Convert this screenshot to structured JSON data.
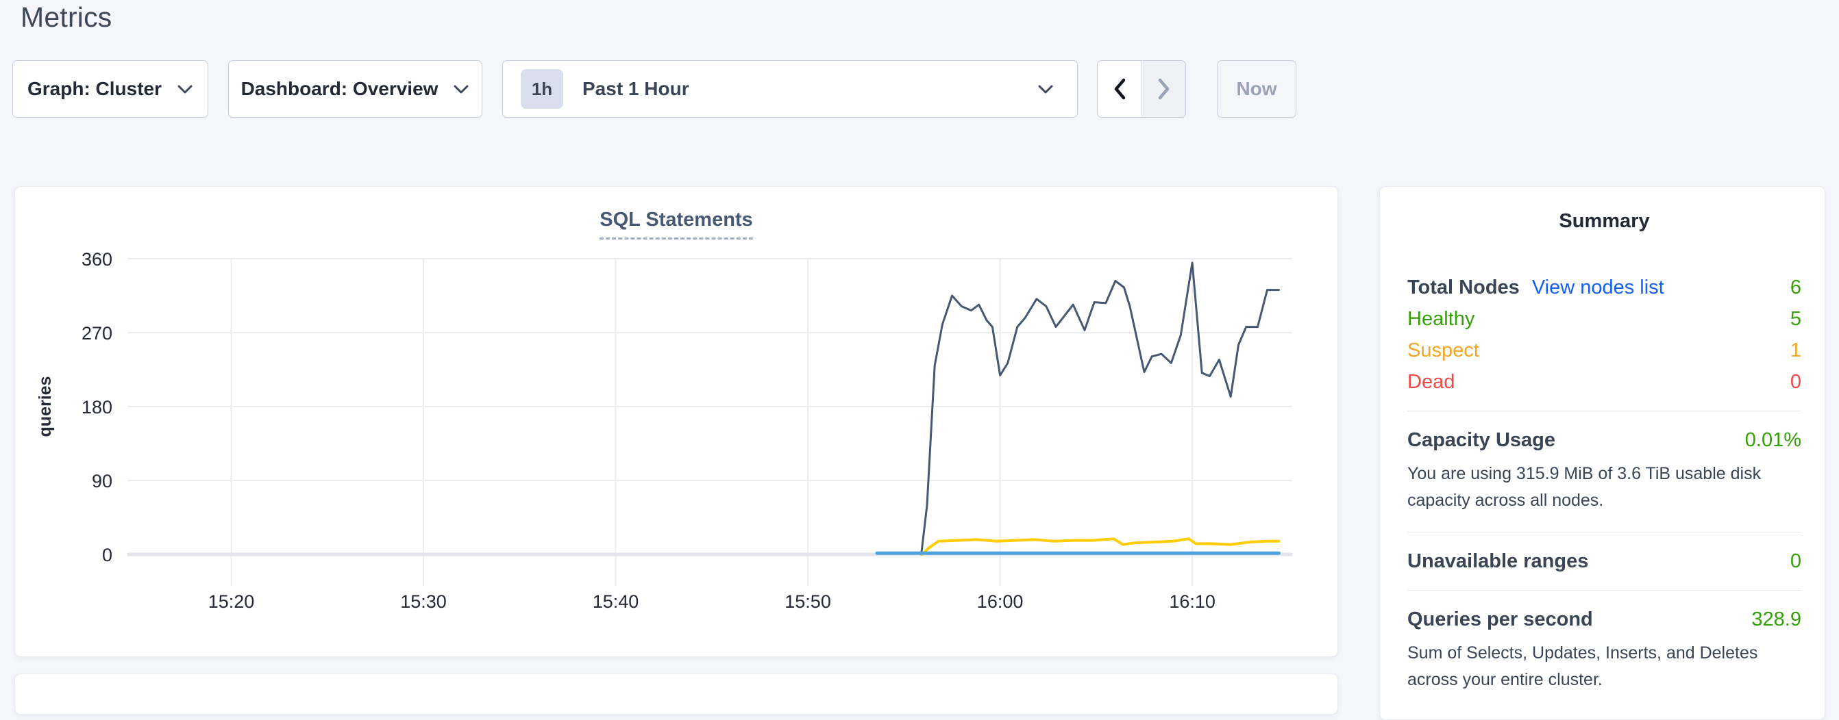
{
  "page": {
    "title": "Metrics",
    "background": "#f4f6fb"
  },
  "toolbar": {
    "graph_dropdown": {
      "label": "Graph: Cluster"
    },
    "dashboard_dropdown": {
      "label": "Dashboard: Overview"
    },
    "time_picker": {
      "badge": "1h",
      "label": "Past 1 Hour"
    },
    "now_button": {
      "label": "Now",
      "enabled": false
    },
    "prev_enabled": true,
    "next_enabled": false
  },
  "chart_data": {
    "type": "line",
    "title": "SQL Statements",
    "ylabel": "queries",
    "ylim": [
      0,
      360
    ],
    "yticks": [
      0,
      90,
      180,
      270,
      360
    ],
    "xlim_minutes": [
      914.6,
      975.2
    ],
    "xticks": [
      {
        "m": 920,
        "label": "15:20"
      },
      {
        "m": 930,
        "label": "15:30"
      },
      {
        "m": 940,
        "label": "15:40"
      },
      {
        "m": 950,
        "label": "15:50"
      },
      {
        "m": 960,
        "label": "16:00"
      },
      {
        "m": 970,
        "label": "16:10"
      }
    ],
    "grid": true,
    "legend": "none",
    "series": [
      {
        "name": "navy-line",
        "color": "#475872",
        "width": 3,
        "points": [
          [
            955.9,
            0
          ],
          [
            956.2,
            60
          ],
          [
            956.6,
            230
          ],
          [
            957.0,
            280
          ],
          [
            957.5,
            315
          ],
          [
            958.0,
            302
          ],
          [
            958.5,
            297
          ],
          [
            958.9,
            304
          ],
          [
            959.3,
            285
          ],
          [
            959.6,
            277
          ],
          [
            960.0,
            218
          ],
          [
            960.4,
            233
          ],
          [
            960.9,
            277
          ],
          [
            961.3,
            288
          ],
          [
            961.9,
            311
          ],
          [
            962.4,
            302
          ],
          [
            962.9,
            277
          ],
          [
            963.8,
            304
          ],
          [
            964.4,
            273
          ],
          [
            964.9,
            307
          ],
          [
            965.5,
            306
          ],
          [
            966.0,
            333
          ],
          [
            966.45,
            325
          ],
          [
            966.75,
            302
          ],
          [
            967.5,
            222
          ],
          [
            967.9,
            241
          ],
          [
            968.4,
            244
          ],
          [
            968.9,
            233
          ],
          [
            969.4,
            267
          ],
          [
            970.0,
            355
          ],
          [
            970.5,
            221
          ],
          [
            970.9,
            217
          ],
          [
            971.4,
            237
          ],
          [
            972.0,
            192
          ],
          [
            972.4,
            255
          ],
          [
            972.8,
            277
          ],
          [
            973.4,
            277
          ],
          [
            973.9,
            322
          ],
          [
            974.5,
            322
          ]
        ]
      },
      {
        "name": "yellow-line",
        "color": "#ffcd02",
        "width": 4,
        "points": [
          [
            955.95,
            0
          ],
          [
            956.3,
            8
          ],
          [
            956.8,
            16
          ],
          [
            957.8,
            17
          ],
          [
            958.8,
            18
          ],
          [
            959.8,
            16
          ],
          [
            960.8,
            17
          ],
          [
            961.8,
            18
          ],
          [
            962.8,
            16
          ],
          [
            963.8,
            17
          ],
          [
            964.8,
            17
          ],
          [
            965.9,
            19
          ],
          [
            966.4,
            12
          ],
          [
            967.0,
            14
          ],
          [
            968.0,
            15
          ],
          [
            969.0,
            16
          ],
          [
            969.8,
            19
          ],
          [
            970.2,
            13
          ],
          [
            971.0,
            13
          ],
          [
            972.0,
            12
          ],
          [
            973.0,
            15
          ],
          [
            973.9,
            16
          ],
          [
            974.5,
            16
          ]
        ]
      },
      {
        "name": "blue-line",
        "color": "#4fa3dd",
        "width": 5,
        "points": [
          [
            953.6,
            1.5
          ],
          [
            974.5,
            1.5
          ]
        ]
      }
    ]
  },
  "summary": {
    "title": "Summary",
    "nodes": {
      "label": "Total Nodes",
      "link": "View nodes list",
      "value": "6",
      "value_color": "#33a106",
      "statuses": [
        {
          "label": "Healthy",
          "value": "5",
          "color": "#33a106"
        },
        {
          "label": "Suspect",
          "value": "1",
          "color": "#f5a623"
        },
        {
          "label": "Dead",
          "value": "0",
          "color": "#f04848"
        }
      ]
    },
    "capacity": {
      "label": "Capacity Usage",
      "value": "0.01%",
      "description": "You are using 315.9 MiB of 3.6 TiB usable disk capacity across all nodes."
    },
    "unavailable_ranges": {
      "label": "Unavailable ranges",
      "value": "0"
    },
    "qps": {
      "label": "Queries per second",
      "value": "328.9",
      "description": "Sum of Selects, Updates, Inserts, and Deletes across your entire cluster."
    }
  },
  "colors": {
    "link": "#1660f0",
    "value_green": "#33a106",
    "status_orange": "#f5a623",
    "status_red": "#f04848",
    "series_navy": "#475872",
    "series_yellow": "#ffcd02",
    "series_blue": "#4fa3dd"
  }
}
